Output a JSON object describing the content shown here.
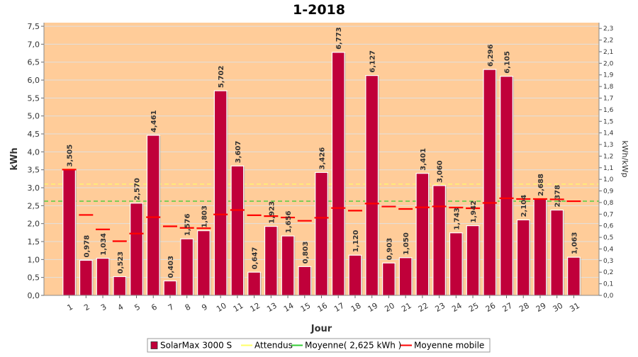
{
  "chart_data": {
    "type": "bar",
    "title": "1-2018",
    "xlabel": "Jour",
    "ylabel": "kWh",
    "ylabel_right": "kWh/kWp",
    "ylim": [
      0,
      7.6
    ],
    "y2lim": [
      0,
      2.35
    ],
    "yticks": [
      "0,0",
      "0,5",
      "1,0",
      "1,5",
      "2,0",
      "2,5",
      "3,0",
      "3,5",
      "4,0",
      "4,5",
      "5,0",
      "5,5",
      "6,0",
      "6,5",
      "7,0",
      "7,5"
    ],
    "y2ticks": [
      "0,0",
      "0,1",
      "0,2",
      "0,3",
      "0,4",
      "0,5",
      "0,6",
      "0,7",
      "0,8",
      "0,9",
      "1,0",
      "1,1",
      "1,2",
      "1,3",
      "1,4",
      "1,5",
      "1,6",
      "1,7",
      "1,8",
      "1,9",
      "2,0",
      "2,1",
      "2,2",
      "2,3"
    ],
    "categories": [
      "1",
      "2",
      "3",
      "4",
      "5",
      "6",
      "7",
      "8",
      "9",
      "10",
      "11",
      "12",
      "13",
      "14",
      "15",
      "16",
      "17",
      "18",
      "19",
      "20",
      "21",
      "22",
      "23",
      "24",
      "25",
      "26",
      "27",
      "28",
      "29",
      "30",
      "31"
    ],
    "series": [
      {
        "name": "SolarMax 3000 S",
        "values": [
          3.505,
          0.978,
          1.034,
          0.523,
          2.57,
          4.461,
          0.403,
          1.576,
          1.803,
          5.702,
          3.607,
          0.647,
          1.923,
          1.656,
          0.803,
          3.426,
          6.773,
          1.12,
          6.127,
          0.903,
          1.05,
          3.401,
          3.06,
          1.743,
          1.942,
          6.296,
          6.105,
          2.104,
          2.688,
          2.378,
          1.063
        ],
        "labels": [
          "3,505",
          "0,978",
          "1,034",
          "0,523",
          "2,570",
          "4,461",
          "0,403",
          "1,576",
          "1,803",
          "5,702",
          "3,607",
          "0,647",
          "1,923",
          "1,656",
          "0,803",
          "3,426",
          "6,773",
          "1,120",
          "6,127",
          "0,903",
          "1,050",
          "3,401",
          "3,060",
          "1,743",
          "1,942",
          "6,296",
          "6,105",
          "2,104",
          "2,688",
          "2,378",
          "1,063"
        ],
        "color": "#c0003a"
      },
      {
        "name": "Moyenne mobile",
        "values": [
          3.505,
          2.242,
          1.839,
          1.51,
          1.722,
          2.179,
          1.925,
          1.881,
          1.872,
          2.255,
          2.378,
          2.233,
          2.209,
          2.17,
          2.079,
          2.163,
          2.434,
          2.361,
          2.559,
          2.476,
          2.408,
          2.453,
          2.479,
          2.448,
          2.428,
          2.576,
          2.707,
          2.686,
          2.686,
          2.676,
          2.624
        ],
        "color": "#ff0000"
      }
    ],
    "reference_lines": [
      {
        "name": "Attendus",
        "value": 3.1,
        "color": "#ffff66"
      },
      {
        "name": "Moyenne( 2,625 kWh )",
        "value": 2.625,
        "color": "#33cc33"
      }
    ],
    "legend_position": "bottom",
    "plot_background": "#ffcc99",
    "grid": true
  }
}
